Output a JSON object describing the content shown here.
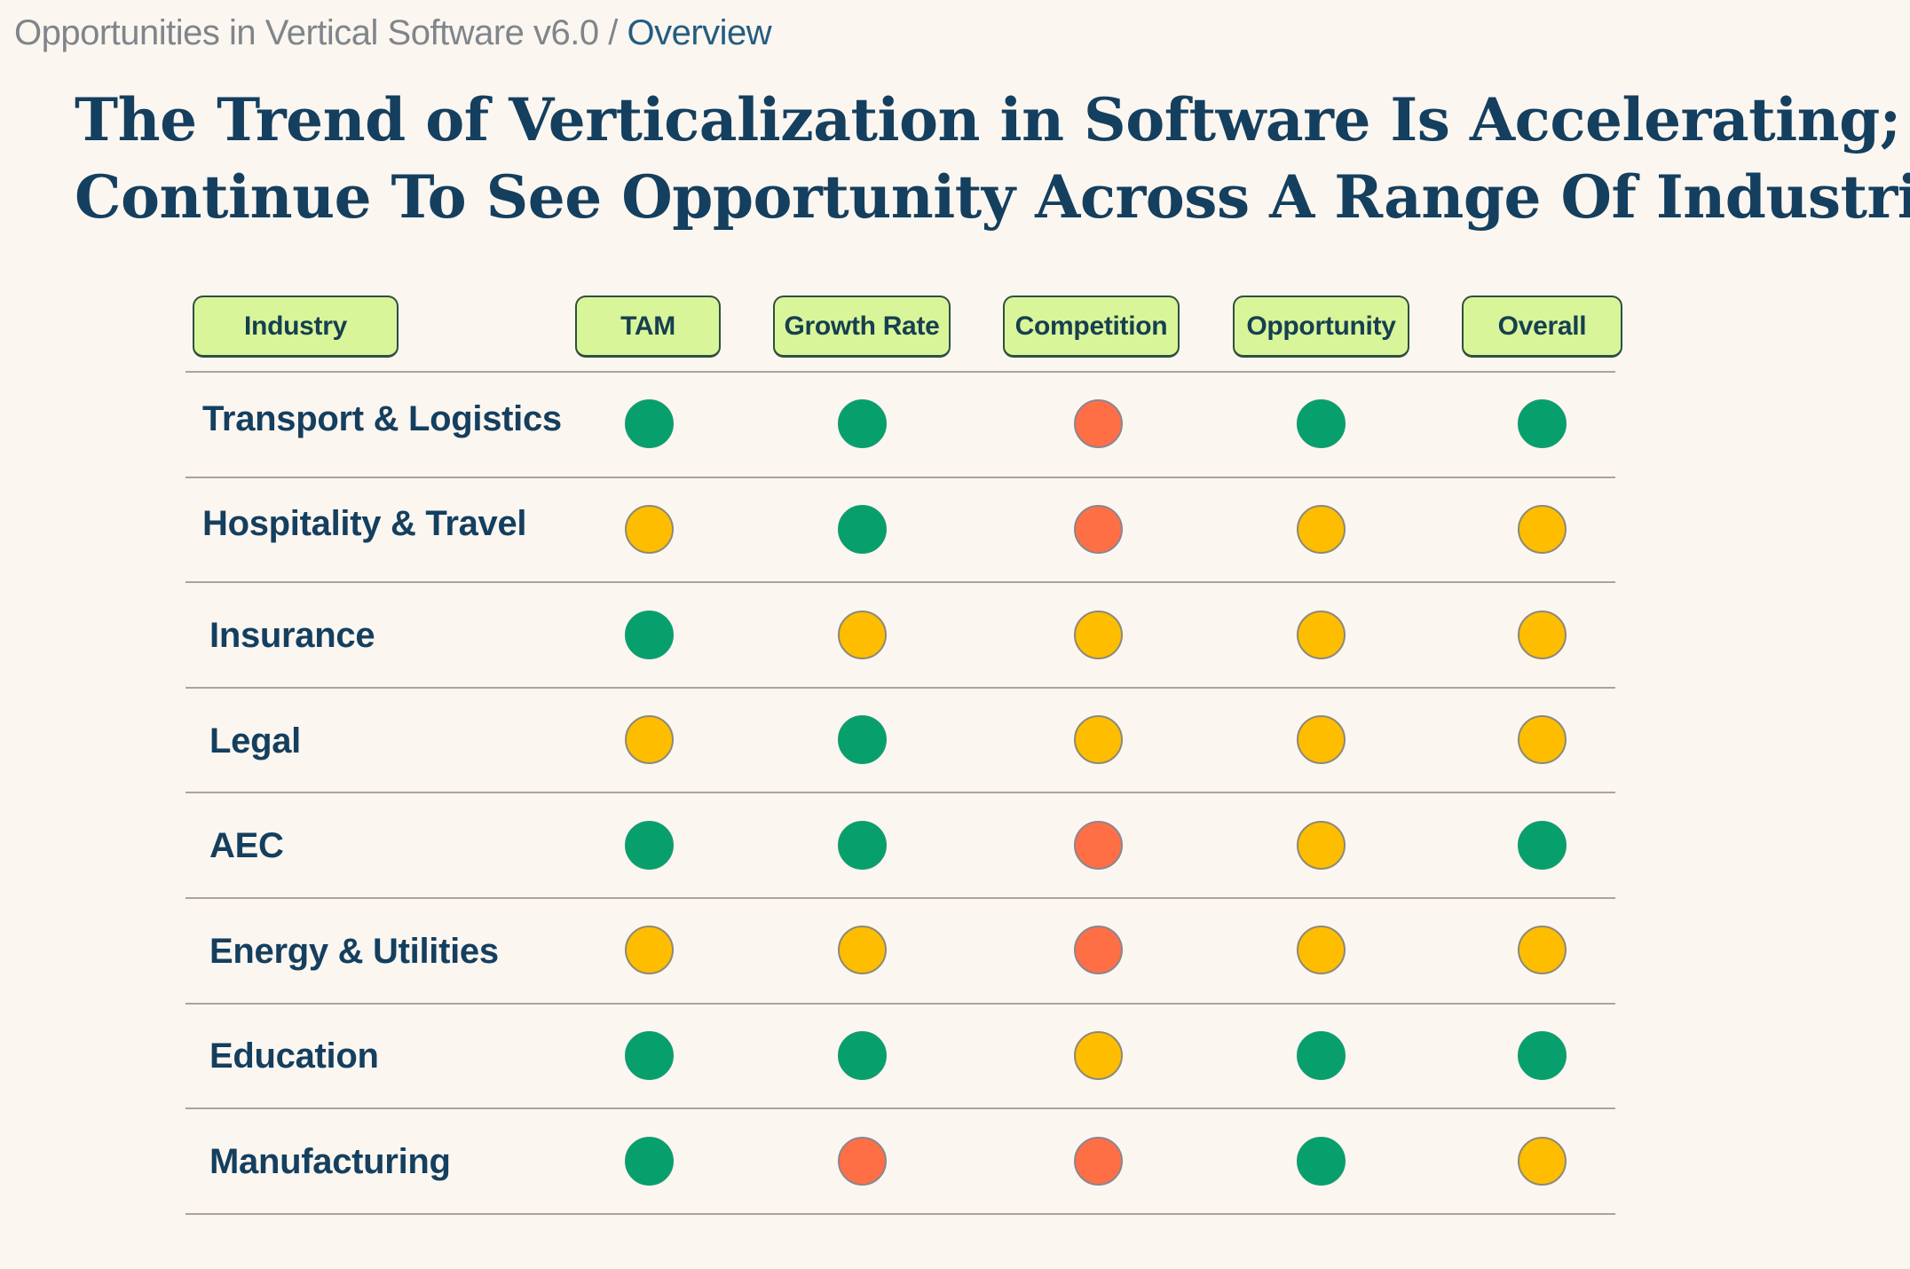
{
  "breadcrumb": {
    "parent": "Opportunities in Vertical Software v6.0",
    "separator": " / ",
    "current": "Overview"
  },
  "title": {
    "line1": "The Trend of Verticalization in Software Is Accelerating; We",
    "line2": "Continue To See Opportunity Across A Range Of Industries."
  },
  "legend_colors": {
    "green": "#07A06C",
    "yellow": "#FFBD00",
    "red": "#FF6F45",
    "header_bg": "#D9F59A",
    "text": "#143F5F"
  },
  "table": {
    "headers": [
      "Industry",
      "TAM",
      "Growth Rate",
      "Competition",
      "Opportunity",
      "Overall"
    ],
    "rows": [
      {
        "industry": "Transport & Logistics",
        "ratings": [
          "green",
          "green",
          "red",
          "green",
          "green"
        ]
      },
      {
        "industry": "Hospitality & Travel",
        "ratings": [
          "yellow",
          "green",
          "red",
          "yellow",
          "yellow"
        ]
      },
      {
        "industry": "Insurance",
        "ratings": [
          "green",
          "yellow",
          "yellow",
          "yellow",
          "yellow"
        ]
      },
      {
        "industry": "Legal",
        "ratings": [
          "yellow",
          "green",
          "yellow",
          "yellow",
          "yellow"
        ]
      },
      {
        "industry": "AEC",
        "ratings": [
          "green",
          "green",
          "red",
          "yellow",
          "green"
        ]
      },
      {
        "industry": "Energy & Utilities",
        "ratings": [
          "yellow",
          "yellow",
          "red",
          "yellow",
          "yellow"
        ]
      },
      {
        "industry": "Education",
        "ratings": [
          "green",
          "green",
          "yellow",
          "green",
          "green"
        ]
      },
      {
        "industry": "Manufacturing",
        "ratings": [
          "green",
          "red",
          "red",
          "green",
          "yellow"
        ]
      }
    ]
  }
}
